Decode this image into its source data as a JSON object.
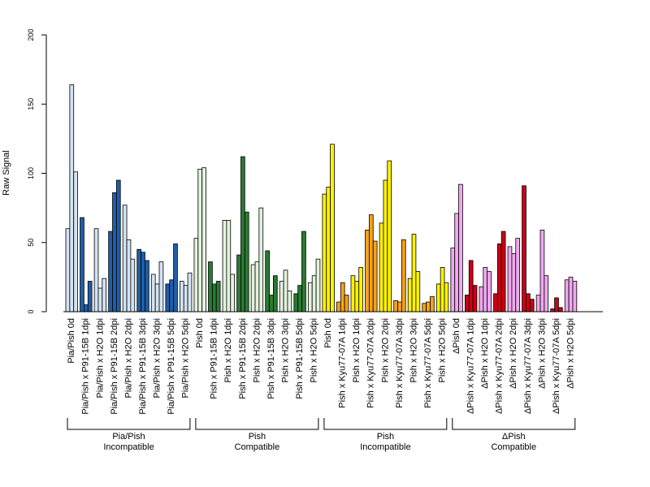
{
  "chart_data": {
    "type": "bar",
    "title": "",
    "xlabel": "",
    "ylabel": "Raw Signal",
    "ylim": [
      0,
      200
    ],
    "yticks": [
      "0",
      "50",
      "100",
      "150",
      "200"
    ],
    "grid": false,
    "legend": "none",
    "colors": {
      "light_blue": "#d4e3f2",
      "dark_blue": "#1f5ea8",
      "light_green": "#e3f2dd",
      "dark_green": "#2a7a33",
      "yellow": "#fff200",
      "orange": "#f5a21c",
      "pink": "#f0a8f0",
      "red": "#cc0016"
    },
    "categories": [
      {
        "label": "Pia/Pish 0d",
        "color": "light_blue",
        "values": [
          60,
          164,
          101
        ]
      },
      {
        "label": "Pia/Pish x P91-15B 1dpi",
        "color": "dark_blue",
        "values": [
          68,
          5,
          22
        ]
      },
      {
        "label": "Pia/Pish x H2O 1dpi",
        "color": "light_blue",
        "values": [
          60,
          17,
          24
        ]
      },
      {
        "label": "Pia/Pish x P91-15B 2dpi",
        "color": "dark_blue",
        "values": [
          58,
          86,
          95
        ]
      },
      {
        "label": "Pia/Pish x H2O 2dpi",
        "color": "light_blue",
        "values": [
          77,
          52,
          38
        ]
      },
      {
        "label": "Pia/Pish x P91-15B 3dpi",
        "color": "dark_blue",
        "values": [
          45,
          43,
          37
        ]
      },
      {
        "label": "Pia/Pish x H2O 3dpi",
        "color": "light_blue",
        "values": [
          27,
          20,
          36
        ]
      },
      {
        "label": "Pia/Pish x P91-15B 5dpi",
        "color": "dark_blue",
        "values": [
          20,
          23,
          49
        ]
      },
      {
        "label": "Pia/Pish x H2O 5dpi",
        "color": "light_blue",
        "values": [
          22,
          19,
          28
        ]
      },
      {
        "label": "Pish 0d",
        "color": "light_green",
        "values": [
          53,
          103,
          104
        ]
      },
      {
        "label": "Pish x P91-15B 1dpi",
        "color": "dark_green",
        "values": [
          36,
          20,
          22
        ]
      },
      {
        "label": "Pish x H2O 1dpi",
        "color": "light_green",
        "values": [
          66,
          66,
          27
        ]
      },
      {
        "label": "Pish x P91-15B 2dpi",
        "color": "dark_green",
        "values": [
          41,
          112,
          72
        ]
      },
      {
        "label": "Pish x H2O 2dpi",
        "color": "light_green",
        "values": [
          34,
          36,
          75
        ]
      },
      {
        "label": "Pish x P91-15B 3dpi",
        "color": "dark_green",
        "values": [
          44,
          12,
          26
        ]
      },
      {
        "label": "Pish x H2O 3dpi",
        "color": "light_green",
        "values": [
          22,
          30,
          15
        ]
      },
      {
        "label": "Pish x P91-15B 5dpi",
        "color": "dark_green",
        "values": [
          13,
          19,
          58
        ]
      },
      {
        "label": "Pish x H2O 5dpi",
        "color": "light_green",
        "values": [
          21,
          26,
          38
        ]
      },
      {
        "label": "Pish 0d",
        "color": "yellow",
        "values": [
          85,
          90,
          121
        ]
      },
      {
        "label": "Pish x Kyu77-07A 1dpi",
        "color": "orange",
        "values": [
          7,
          21,
          12
        ]
      },
      {
        "label": "Pish x H2O 1dpi",
        "color": "yellow",
        "values": [
          26,
          22,
          32
        ]
      },
      {
        "label": "Pish x Kyu77-07A 2dpi",
        "color": "orange",
        "values": [
          59,
          70,
          51
        ]
      },
      {
        "label": "Pish x H2O 2dpi",
        "color": "yellow",
        "values": [
          64,
          95,
          109
        ]
      },
      {
        "label": "Pish x Kyu77-07A 3dpi",
        "color": "orange",
        "values": [
          8,
          7,
          52
        ]
      },
      {
        "label": "Pish x H2O 3dpi",
        "color": "yellow",
        "values": [
          24,
          56,
          29
        ]
      },
      {
        "label": "Pish x Kyu77-07A 5dpi",
        "color": "orange",
        "values": [
          6,
          7,
          11
        ]
      },
      {
        "label": "Pish x H2O 5dpi",
        "color": "yellow",
        "values": [
          20,
          32,
          21
        ]
      },
      {
        "label": "ΔPish 0d",
        "color": "pink",
        "values": [
          46,
          71,
          92
        ]
      },
      {
        "label": "ΔPish x Kyu77-07A 1dpi",
        "color": "red",
        "values": [
          12,
          37,
          19
        ]
      },
      {
        "label": "ΔPish x H2O 1dpi",
        "color": "pink",
        "values": [
          18,
          32,
          29
        ]
      },
      {
        "label": "ΔPish x Kyu77-07A 2dpi",
        "color": "red",
        "values": [
          13,
          49,
          58
        ]
      },
      {
        "label": "ΔPish x H2O 2dpi",
        "color": "pink",
        "values": [
          47,
          42,
          53
        ]
      },
      {
        "label": "ΔPish x Kyu77-07A 3dpi",
        "color": "red",
        "values": [
          91,
          13,
          9
        ]
      },
      {
        "label": "ΔPish x H2O 3dpi",
        "color": "pink",
        "values": [
          12,
          59,
          26
        ]
      },
      {
        "label": "ΔPish x Kyu77-07A 5dpi",
        "color": "red",
        "values": [
          2,
          10,
          3
        ]
      },
      {
        "label": "ΔPish x H2O 5dpi",
        "color": "pink",
        "values": [
          23,
          25,
          22
        ]
      }
    ],
    "groups": [
      {
        "line1": "Pia/Pish",
        "line2": "Incompatible",
        "from": 0,
        "to": 8
      },
      {
        "line1": "Pish",
        "line2": "Compatible",
        "from": 9,
        "to": 17
      },
      {
        "line1": "Pish",
        "line2": "Incompatible",
        "from": 18,
        "to": 26
      },
      {
        "line1": "ΔPish",
        "line2": "Compatible",
        "from": 27,
        "to": 35
      }
    ]
  }
}
